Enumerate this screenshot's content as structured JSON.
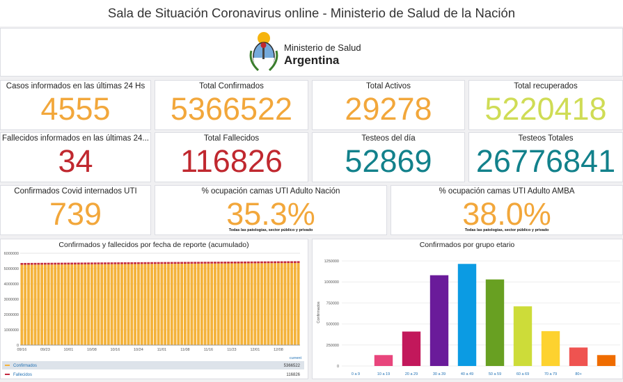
{
  "header": {
    "title": "Sala de Situación Coronavirus online - Ministerio de Salud de la Nación"
  },
  "logo": {
    "line1": "Ministerio de Salud",
    "line2": "Argentina"
  },
  "stats": [
    {
      "label": "Casos informados en las últimas 24 Hs",
      "value": 4555,
      "color": "#f2a73b"
    },
    {
      "label": "Total Confirmados",
      "value": 5366522,
      "color": "#f2a73b"
    },
    {
      "label": "Total Activos",
      "value": 29278,
      "color": "#f2a73b"
    },
    {
      "label": "Total recuperados",
      "value": 5220418,
      "color": "#cfdc55"
    },
    {
      "label": "Fallecidos informados en las últimas 24...",
      "value": 34,
      "color": "#c0282f"
    },
    {
      "label": "Total Fallecidos",
      "value": 116826,
      "color": "#c0282f"
    },
    {
      "label": "Testeos del día",
      "value": 52869,
      "color": "#12818b"
    },
    {
      "label": "Testeos Totales",
      "value": 26776841,
      "color": "#12818b"
    },
    {
      "label": "Confirmados Covid internados UTI",
      "value": 739,
      "color": "#f2a73b"
    },
    {
      "label": "% ocupación camas UTI Adulto Nación",
      "value": 35.3,
      "value_label": "35.3%",
      "color": "#f2a73b",
      "note": "Todas las patologías, sector público y privado"
    },
    {
      "label": "% ocupación camas UTI Adulto AMBA",
      "value": 38.0,
      "value_label": "38.0%",
      "color": "#f2a73b",
      "note": "Todas las patologías, sector público y privado"
    }
  ],
  "charts": [
    {
      "type": "bar",
      "stacked": true,
      "title": "Confirmados y fallecidos por fecha de reporte (acumulado)",
      "legend_header": "current",
      "categories": [
        "09/16",
        null,
        null,
        null,
        null,
        null,
        null,
        "09/23",
        null,
        null,
        null,
        null,
        null,
        null,
        "10/01",
        null,
        null,
        null,
        null,
        null,
        null,
        "10/08",
        null,
        null,
        null,
        null,
        null,
        null,
        "10/16",
        null,
        null,
        null,
        null,
        null,
        null,
        "10/24",
        null,
        null,
        null,
        null,
        null,
        null,
        "11/01",
        null,
        null,
        null,
        null,
        null,
        null,
        "11/08",
        null,
        null,
        null,
        null,
        null,
        null,
        "11/16",
        null,
        null,
        null,
        null,
        null,
        null,
        "11/23",
        null,
        null,
        null,
        null,
        null,
        null,
        "12/01",
        null,
        null,
        null,
        null,
        null,
        null,
        "12/08",
        null,
        null,
        null,
        null,
        null,
        null
      ],
      "ylim": [
        0,
        6000000
      ],
      "yticks": [
        0,
        1000000,
        2000000,
        3000000,
        4000000,
        5000000,
        6000000
      ],
      "grid": true,
      "series": [
        {
          "name": "Confirmados",
          "color": "#f4b23a",
          "values": [
            5250000,
            5251400,
            5252800,
            5254200,
            5255600,
            5257000,
            5258400,
            5259800,
            5261200,
            5262600,
            5264000,
            5265400,
            5266800,
            5268200,
            5269600,
            5271000,
            5272400,
            5273800,
            5275200,
            5276600,
            5278000,
            5279400,
            5280800,
            5282200,
            5283600,
            5285000,
            5286400,
            5287800,
            5289200,
            5290600,
            5292000,
            5293400,
            5294800,
            5296200,
            5297600,
            5299000,
            5300400,
            5301800,
            5303200,
            5304600,
            5306000,
            5307400,
            5308800,
            5310200,
            5311600,
            5313000,
            5314400,
            5315800,
            5317200,
            5318600,
            5320000,
            5321400,
            5322800,
            5324200,
            5325600,
            5327000,
            5328400,
            5329800,
            5331200,
            5332600,
            5334000,
            5335400,
            5336800,
            5338200,
            5339600,
            5341000,
            5342400,
            5343800,
            5345200,
            5346600,
            5348000,
            5349400,
            5350800,
            5352200,
            5353600,
            5355000,
            5356400,
            5357800,
            5359200,
            5360600,
            5362000,
            5363400,
            5364800,
            5366522
          ]
        },
        {
          "name": "Fallecidos",
          "color": "#c3283f",
          "values": [
            115000,
            115022,
            115044,
            115066,
            115088,
            115110,
            115132,
            115154,
            115176,
            115198,
            115220,
            115242,
            115264,
            115286,
            115308,
            115330,
            115352,
            115374,
            115396,
            115418,
            115440,
            115462,
            115484,
            115506,
            115528,
            115550,
            115572,
            115594,
            115616,
            115638,
            115660,
            115682,
            115704,
            115726,
            115748,
            115770,
            115792,
            115814,
            115836,
            115858,
            115880,
            115902,
            115924,
            115946,
            115968,
            115990,
            116012,
            116034,
            116056,
            116078,
            116100,
            116122,
            116144,
            116166,
            116188,
            116210,
            116232,
            116254,
            116276,
            116298,
            116320,
            116342,
            116364,
            116386,
            116408,
            116430,
            116452,
            116474,
            116496,
            116518,
            116540,
            116562,
            116584,
            116606,
            116628,
            116650,
            116672,
            116694,
            116716,
            116738,
            116760,
            116782,
            116804,
            116826
          ]
        }
      ]
    },
    {
      "type": "bar",
      "title": "Confirmados por grupo etario",
      "ylabel": "Confirmados",
      "categories": [
        "0 a 9",
        "10 a 19",
        "20 a 29",
        "30 a 39",
        "40 a 49",
        "50 a 59",
        "60 a 69",
        "70 a 79",
        "80+",
        null
      ],
      "values": [
        0,
        130000,
        410000,
        1080000,
        1215000,
        1030000,
        710000,
        415000,
        220000,
        130000
      ],
      "colors": [
        "#e8457c",
        "#e8457c",
        "#c2185b",
        "#6a1b9a",
        "#0b9be3",
        "#68a022",
        "#cddc39",
        "#fdd22f",
        "#ef5350",
        "#ef6c00"
      ],
      "ylim": [
        0,
        1300000
      ],
      "yticks": [
        0,
        250000,
        500000,
        750000,
        1000000,
        1250000
      ],
      "grid": true
    }
  ]
}
